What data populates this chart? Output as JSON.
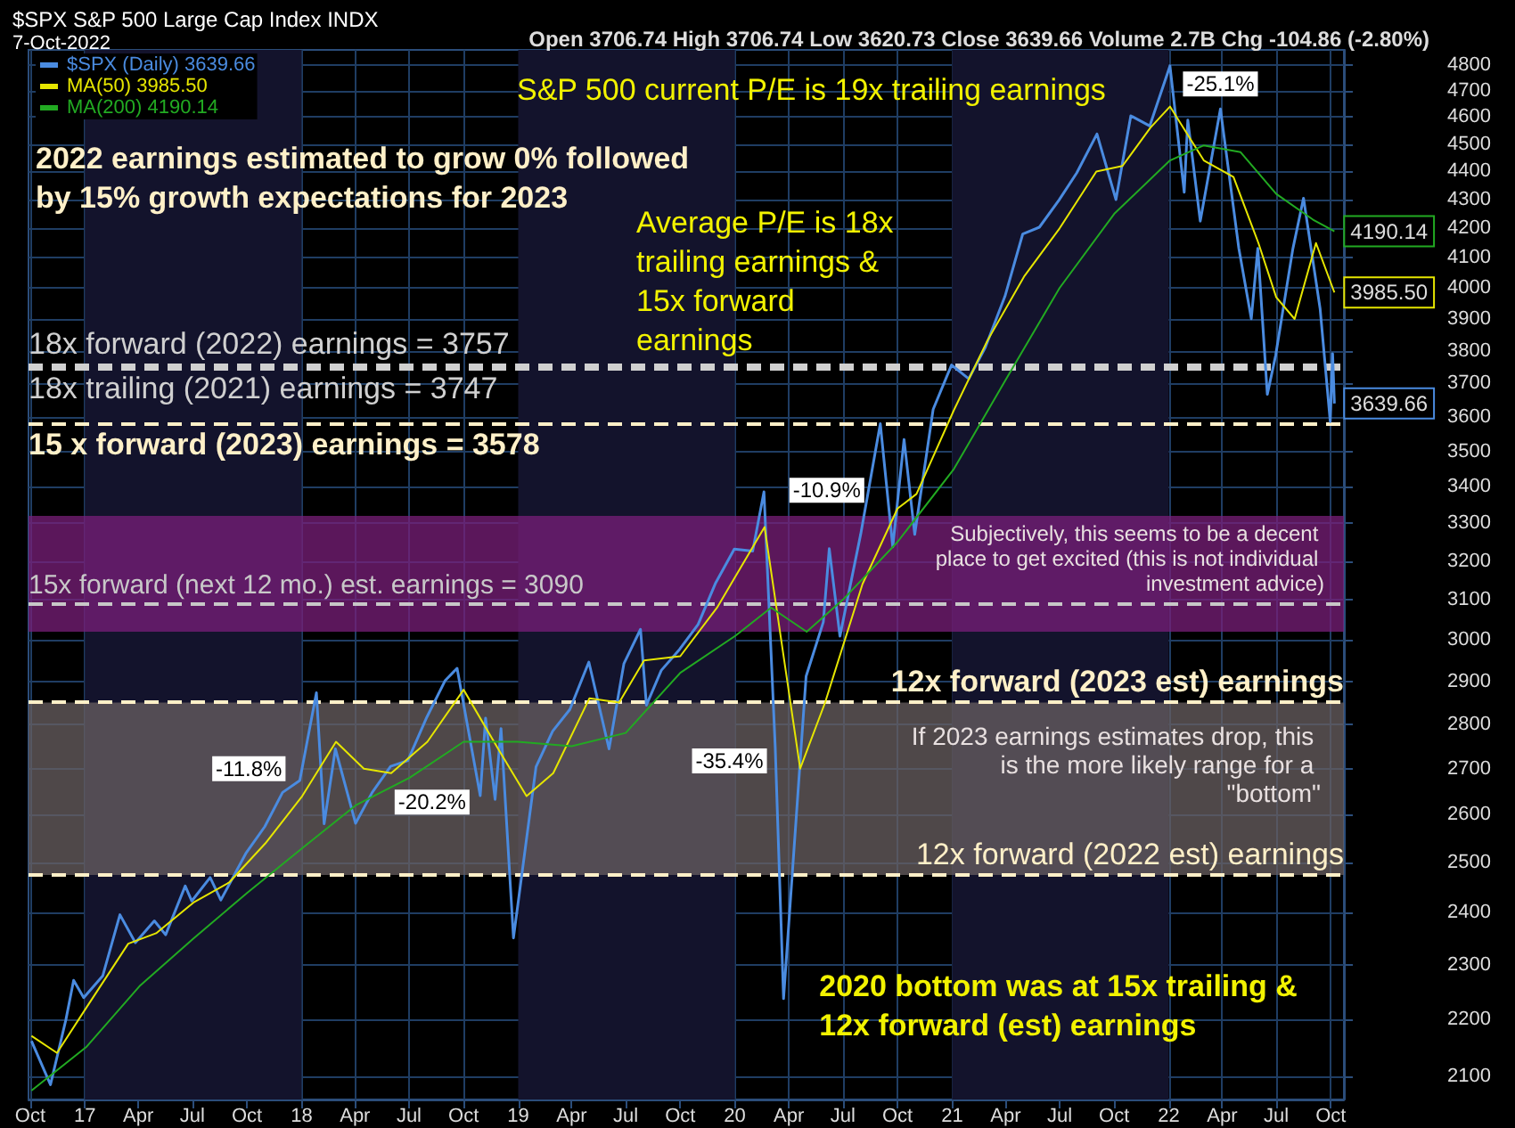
{
  "chart_data": {
    "type": "line",
    "title": "$SPX S&P 500 Large Cap Index INDX",
    "subtitle": "7-Oct-2022",
    "log": "y",
    "grid": true,
    "legend": "top left",
    "marker": "none",
    "xlim": [
      "2016-09-28",
      "2022-10-23"
    ],
    "xticks": [
      {
        "value": "2016-10-01",
        "label": "Oct"
      },
      {
        "value": "2017-01-01",
        "label": "17"
      },
      {
        "value": "2017-04-01",
        "label": "Apr"
      },
      {
        "value": "2017-07-01",
        "label": "Jul"
      },
      {
        "value": "2017-10-01",
        "label": "Oct"
      },
      {
        "value": "2018-01-01",
        "label": "18"
      },
      {
        "value": "2018-04-01",
        "label": "Apr"
      },
      {
        "value": "2018-07-01",
        "label": "Jul"
      },
      {
        "value": "2018-10-01",
        "label": "Oct"
      },
      {
        "value": "2019-01-01",
        "label": "19"
      },
      {
        "value": "2019-04-01",
        "label": "Apr"
      },
      {
        "value": "2019-07-01",
        "label": "Jul"
      },
      {
        "value": "2019-10-01",
        "label": "Oct"
      },
      {
        "value": "2020-01-01",
        "label": "20"
      },
      {
        "value": "2020-04-01",
        "label": "Apr"
      },
      {
        "value": "2020-07-01",
        "label": "Jul"
      },
      {
        "value": "2020-10-01",
        "label": "Oct"
      },
      {
        "value": "2021-01-01",
        "label": "21"
      },
      {
        "value": "2021-04-01",
        "label": "Apr"
      },
      {
        "value": "2021-07-01",
        "label": "Jul"
      },
      {
        "value": "2021-10-01",
        "label": "Oct"
      },
      {
        "value": "2022-01-01",
        "label": "22"
      },
      {
        "value": "2022-04-01",
        "label": "Apr"
      },
      {
        "value": "2022-07-01",
        "label": "Jul"
      },
      {
        "value": "2022-10-01",
        "label": "Oct"
      }
    ],
    "ylim": [
      2060,
      4860
    ],
    "yticks": [
      2100,
      2200,
      2300,
      2400,
      2500,
      2600,
      2700,
      2800,
      2900,
      3000,
      3100,
      3200,
      3300,
      3400,
      3500,
      3600,
      3700,
      3800,
      3900,
      4000,
      4100,
      4200,
      4300,
      4400,
      4500,
      4600,
      4700,
      4800
    ],
    "series": [
      {
        "name": "$SPX (Daily) 3639.66",
        "color": "#4a8be0",
        "x": [
          "2016-10-03",
          "2016-11-04",
          "2016-11-30",
          "2016-12-13",
          "2016-12-30",
          "2017-01-31",
          "2017-03-01",
          "2017-03-27",
          "2017-04-28",
          "2017-05-17",
          "2017-06-19",
          "2017-06-30",
          "2017-07-31",
          "2017-08-18",
          "2017-09-29",
          "2017-10-31",
          "2017-11-30",
          "2017-12-29",
          "2018-01-26",
          "2018-02-08",
          "2018-02-27",
          "2018-04-02",
          "2018-04-30",
          "2018-05-31",
          "2018-06-29",
          "2018-07-31",
          "2018-08-31",
          "2018-09-20",
          "2018-10-29",
          "2018-11-07",
          "2018-11-23",
          "2018-12-03",
          "2018-12-24",
          "2019-01-31",
          "2019-02-28",
          "2019-03-29",
          "2019-04-30",
          "2019-06-03",
          "2019-06-28",
          "2019-07-26",
          "2019-08-05",
          "2019-08-30",
          "2019-09-30",
          "2019-10-31",
          "2019-11-29",
          "2019-12-31",
          "2020-01-31",
          "2020-02-19",
          "2020-03-09",
          "2020-03-23",
          "2020-04-30",
          "2020-05-29",
          "2020-06-08",
          "2020-06-26",
          "2020-07-31",
          "2020-09-02",
          "2020-09-23",
          "2020-10-12",
          "2020-10-30",
          "2020-11-30",
          "2020-12-31",
          "2021-01-29",
          "2021-02-26",
          "2021-03-31",
          "2021-04-30",
          "2021-05-28",
          "2021-06-30",
          "2021-07-30",
          "2021-09-02",
          "2021-10-04",
          "2021-10-29",
          "2021-11-30",
          "2022-01-03",
          "2022-01-27",
          "2022-02-02",
          "2022-02-23",
          "2022-03-29",
          "2022-04-29",
          "2022-05-20",
          "2022-05-31",
          "2022-06-16",
          "2022-06-30",
          "2022-07-29",
          "2022-08-16",
          "2022-09-13",
          "2022-09-30",
          "2022-10-04",
          "2022-10-07"
        ],
        "values": [
          2161,
          2085,
          2199,
          2271,
          2239,
          2279,
          2396,
          2342,
          2384,
          2357,
          2453,
          2423,
          2470,
          2425,
          2519,
          2575,
          2648,
          2674,
          2873,
          2581,
          2744,
          2582,
          2648,
          2705,
          2718,
          2816,
          2902,
          2931,
          2641,
          2814,
          2633,
          2790,
          2351,
          2704,
          2784,
          2834,
          2946,
          2744,
          2942,
          3026,
          2844,
          2926,
          2977,
          3038,
          3141,
          3231,
          3226,
          3386,
          2747,
          2237,
          2912,
          3044,
          3232,
          3009,
          3271,
          3580,
          3237,
          3534,
          3270,
          3622,
          3756,
          3714,
          3811,
          3973,
          4181,
          4204,
          4298,
          4395,
          4537,
          4300,
          4605,
          4567,
          4797,
          4326,
          4589,
          4225,
          4631,
          4132,
          3901,
          4132,
          3667,
          3785,
          4130,
          4305,
          3932,
          3586,
          3791,
          3639.66
        ],
        "value_labels": [
          null,
          null,
          null,
          null,
          null,
          null,
          null,
          null,
          null,
          null,
          null,
          null,
          null,
          null,
          null,
          null,
          null,
          null,
          null,
          null,
          null,
          null,
          null,
          null,
          null,
          null,
          null,
          null,
          null,
          null,
          null,
          null,
          null,
          null,
          null,
          null,
          null,
          null,
          null,
          null,
          null,
          null,
          null,
          null,
          null,
          null,
          null,
          null,
          null,
          null,
          null,
          null,
          null,
          null,
          null,
          null,
          null,
          null,
          null,
          null,
          null,
          null,
          null,
          null,
          null,
          null,
          null,
          null,
          null,
          null,
          null,
          null,
          null,
          null,
          null,
          null,
          null,
          null,
          null,
          null,
          null,
          null,
          null,
          null,
          null,
          null,
          null,
          "3639.66"
        ]
      },
      {
        "name": "MA(50) 3985.50",
        "color": "#e6e600",
        "x": [
          "2016-10-03",
          "2016-11-15",
          "2017-01-03",
          "2017-03-15",
          "2017-05-01",
          "2017-07-03",
          "2017-09-01",
          "2017-11-01",
          "2018-01-02",
          "2018-02-28",
          "2018-04-16",
          "2018-06-01",
          "2018-08-01",
          "2018-10-01",
          "2018-11-30",
          "2019-01-15",
          "2019-03-01",
          "2019-05-01",
          "2019-06-20",
          "2019-08-01",
          "2019-10-01",
          "2019-12-02",
          "2020-02-20",
          "2020-04-20",
          "2020-06-01",
          "2020-08-03",
          "2020-10-01",
          "2020-11-02",
          "2021-01-04",
          "2021-03-01",
          "2021-05-03",
          "2021-07-01",
          "2021-09-01",
          "2021-10-15",
          "2021-12-01",
          "2022-01-03",
          "2022-03-01",
          "2022-04-20",
          "2022-06-01",
          "2022-07-01",
          "2022-08-01",
          "2022-09-06",
          "2022-10-07"
        ],
        "values": [
          2170,
          2140,
          2220,
          2340,
          2360,
          2420,
          2460,
          2540,
          2640,
          2760,
          2700,
          2690,
          2760,
          2880,
          2740,
          2640,
          2690,
          2860,
          2850,
          2950,
          2960,
          3080,
          3290,
          2700,
          2850,
          3140,
          3340,
          3380,
          3620,
          3830,
          4040,
          4200,
          4400,
          4420,
          4560,
          4640,
          4440,
          4380,
          4150,
          3970,
          3900,
          4150,
          3985.5
        ],
        "value_labels": [
          null,
          null,
          null,
          null,
          null,
          null,
          null,
          null,
          null,
          null,
          null,
          null,
          null,
          null,
          null,
          null,
          null,
          null,
          null,
          null,
          null,
          null,
          null,
          null,
          null,
          null,
          null,
          null,
          null,
          null,
          null,
          null,
          null,
          null,
          null,
          null,
          null,
          null,
          null,
          null,
          null,
          null,
          "3985.50"
        ]
      },
      {
        "name": "MA(200) 4190.14",
        "color": "#22aa22",
        "x": [
          "2016-10-03",
          "2017-01-03",
          "2017-04-03",
          "2017-07-03",
          "2017-10-02",
          "2018-01-02",
          "2018-04-02",
          "2018-07-02",
          "2018-10-01",
          "2018-12-31",
          "2019-04-01",
          "2019-07-01",
          "2019-10-01",
          "2020-01-02",
          "2020-03-02",
          "2020-05-01",
          "2020-07-01",
          "2020-10-01",
          "2021-01-04",
          "2021-04-01",
          "2021-07-01",
          "2021-10-01",
          "2022-01-03",
          "2022-03-01",
          "2022-05-02",
          "2022-07-01",
          "2022-09-01",
          "2022-10-07"
        ],
        "values": [
          2075,
          2150,
          2260,
          2350,
          2440,
          2530,
          2620,
          2680,
          2760,
          2760,
          2750,
          2780,
          2920,
          3010,
          3080,
          3020,
          3100,
          3250,
          3450,
          3710,
          4000,
          4250,
          4440,
          4495,
          4470,
          4320,
          4230,
          4190.14
        ],
        "value_labels": [
          null,
          null,
          null,
          null,
          null,
          null,
          null,
          null,
          null,
          null,
          null,
          null,
          null,
          null,
          null,
          null,
          null,
          null,
          null,
          null,
          null,
          null,
          null,
          null,
          null,
          null,
          null,
          "4190.14"
        ]
      }
    ],
    "ref_lines": [
      {
        "axis": "y",
        "value": 3757,
        "label": "18x forward (2022) earnings = 3757",
        "color": "#d0d0d0",
        "line_style": "dashed"
      },
      {
        "axis": "y",
        "value": 3747,
        "label": "18x trailing (2021) earnings = 3747",
        "color": "#d0d0d0",
        "line_style": "dashed"
      },
      {
        "axis": "y",
        "value": 3578,
        "label": "15 x forward (2023) earnings = 3578",
        "color": "#fff0c8",
        "line_style": "dashed"
      },
      {
        "axis": "y",
        "value": 3090,
        "label": "15x forward (next 12 mo.) est. earnings = 3090",
        "color": "#c8c8c8",
        "line_style": "dashed"
      },
      {
        "axis": "y",
        "value": 2850,
        "label": "12x forward (2023 est) earnings",
        "color": "#fff0c8",
        "line_style": "dashed"
      },
      {
        "axis": "y",
        "value": 2475,
        "label": "12x forward (2022 est) earnings",
        "color": "#fff0c8",
        "line_style": "dashed"
      }
    ],
    "bands": [
      {
        "axis": "y",
        "from": 3020,
        "to": 3320,
        "label": "Subjectively, this seems to be a decent place to get excited (this is not individual investment advice)",
        "color": "#7a1f7a"
      },
      {
        "axis": "y",
        "from": 2475,
        "to": 2850,
        "label": "If 2023 earnings estimates drop, this is the more likely range for a \"bottom\"",
        "color": "#6a6062"
      },
      {
        "axis": "x",
        "from": "2017-01-01",
        "to": "2018-01-01",
        "color": "#13132c"
      },
      {
        "axis": "x",
        "from": "2019-01-01",
        "to": "2020-01-01",
        "color": "#13132c"
      },
      {
        "axis": "x",
        "from": "2021-01-01",
        "to": "2022-01-01",
        "color": "#13132c"
      }
    ],
    "annotations": [
      "Open 3706.74 High 3706.74 Low 3620.73 Close 3639.66 Volume 2.7B Chg -104.86 (-2.80%)",
      "S&P 500 current P/E is 19x trailing earnings",
      "2022 earnings estimated to grow 0% followed\nby 15% growth expectations for 2023",
      "Average P/E is 18x\ntrailing earnings &\n15x forward\nearnings",
      {
        "text": "-25.1%",
        "x": "2022-03-29",
        "y": 4631
      },
      {
        "text": "-10.9%",
        "x": "2020-08-21",
        "y": 3390
      },
      {
        "text": "-11.8%",
        "x": "2017-12-20",
        "y": 2700
      },
      {
        "text": "-20.2%",
        "x": "2018-10-26",
        "y": 2627
      },
      {
        "text": "-35.4%",
        "x": "2020-03-10",
        "y": 2717
      },
      {
        "text": "2020 bottom was at 15x trailing &\n12x forward (est) earnings",
        "x": "2020-03-23",
        "y": 2237
      }
    ]
  }
}
